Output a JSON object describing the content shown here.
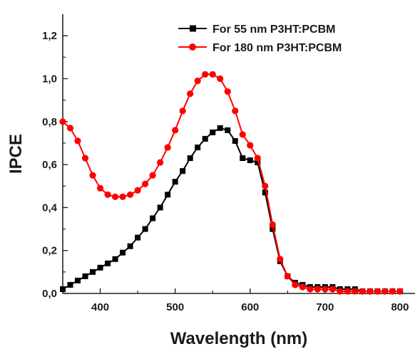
{
  "chart_data": {
    "type": "line",
    "xlabel": "Wavelength (nm)",
    "ylabel": "IPCE",
    "xlim": [
      350,
      820
    ],
    "ylim": [
      0,
      1.3
    ],
    "xticks": [
      400,
      500,
      600,
      700,
      800
    ],
    "xtick_labels": [
      "400",
      "500",
      "600",
      "700",
      "800"
    ],
    "yticks": [
      0,
      0.2,
      0.4,
      0.6,
      0.8,
      1.0,
      1.2
    ],
    "ytick_labels": [
      "0,0",
      "0,2",
      "0,4",
      "0,6",
      "0,8",
      "1,0",
      "1,2"
    ],
    "legend_position": "top-right",
    "grid": false,
    "series": [
      {
        "name": "For 55 nm P3HT:PCBM",
        "color": "#000000",
        "marker": "square",
        "x": [
          350,
          360,
          370,
          380,
          390,
          400,
          410,
          420,
          430,
          440,
          450,
          460,
          470,
          480,
          490,
          500,
          510,
          520,
          530,
          540,
          550,
          560,
          570,
          580,
          590,
          600,
          610,
          620,
          630,
          640,
          650,
          660,
          670,
          680,
          690,
          700,
          710,
          720,
          730,
          740,
          750,
          760,
          770,
          780,
          790,
          800
        ],
        "y": [
          0.02,
          0.04,
          0.06,
          0.08,
          0.1,
          0.12,
          0.14,
          0.16,
          0.19,
          0.22,
          0.26,
          0.3,
          0.35,
          0.4,
          0.46,
          0.52,
          0.57,
          0.63,
          0.68,
          0.72,
          0.75,
          0.77,
          0.76,
          0.71,
          0.63,
          0.62,
          0.61,
          0.47,
          0.3,
          0.15,
          0.08,
          0.05,
          0.04,
          0.03,
          0.03,
          0.03,
          0.03,
          0.02,
          0.02,
          0.02,
          0.01,
          0.01,
          0.01,
          0.01,
          0.01,
          0.01
        ]
      },
      {
        "name": "For 180 nm P3HT:PCBM",
        "color": "#ff0000",
        "marker": "circle",
        "x": [
          350,
          360,
          370,
          380,
          390,
          400,
          410,
          420,
          430,
          440,
          450,
          460,
          470,
          480,
          490,
          500,
          510,
          520,
          530,
          540,
          550,
          560,
          570,
          580,
          590,
          600,
          610,
          620,
          630,
          640,
          650,
          660,
          670,
          680,
          690,
          700,
          710,
          720,
          730,
          740,
          750,
          760,
          770,
          780,
          790,
          800
        ],
        "y": [
          0.8,
          0.77,
          0.71,
          0.63,
          0.55,
          0.49,
          0.46,
          0.45,
          0.45,
          0.46,
          0.48,
          0.51,
          0.55,
          0.61,
          0.68,
          0.76,
          0.85,
          0.93,
          0.99,
          1.02,
          1.02,
          1.0,
          0.94,
          0.85,
          0.74,
          0.69,
          0.63,
          0.5,
          0.32,
          0.16,
          0.08,
          0.04,
          0.03,
          0.02,
          0.02,
          0.02,
          0.02,
          0.01,
          0.01,
          0.01,
          0.01,
          0.01,
          0.01,
          0.01,
          0.01,
          0.01
        ]
      }
    ]
  }
}
